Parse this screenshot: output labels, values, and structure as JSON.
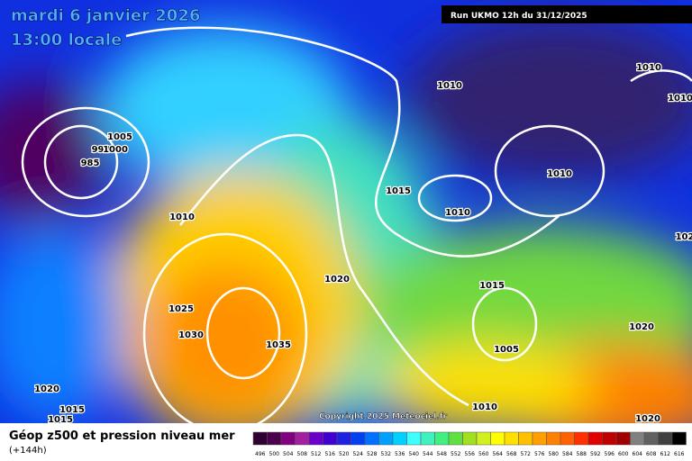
{
  "header": {
    "date": "mardi 6 janvier 2026",
    "time": "13:00 locale",
    "run": "Run UKMO 12h du 31/12/2025",
    "copyright": "Copyright 2025 Meteociel.fr"
  },
  "footer": {
    "title": "Géop z500 et pression niveau mer",
    "lead": "(+144h)"
  },
  "isobars": [
    "1005",
    "990",
    "985",
    "1000",
    "1010",
    "1025",
    "1030",
    "1035",
    "1020",
    "1020",
    "1015",
    "1015",
    "1010",
    "1015",
    "1010",
    "1015",
    "1005",
    "1010",
    "1020",
    "1020",
    "1010",
    "1010",
    "1010",
    "102"
  ],
  "colorbar": {
    "levels": [
      496,
      500,
      504,
      508,
      512,
      516,
      520,
      524,
      528,
      532,
      536,
      540,
      544,
      548,
      552,
      556,
      560,
      564,
      568,
      572,
      576,
      580,
      584,
      588,
      592,
      596,
      600,
      604,
      608,
      612,
      616
    ],
    "colors": [
      "#300030",
      "#4a004a",
      "#800080",
      "#a020a0",
      "#6a00c8",
      "#4000d0",
      "#2020e0",
      "#0040f0",
      "#0070ff",
      "#00a0ff",
      "#00d0ff",
      "#40ffff",
      "#40f0c0",
      "#40f080",
      "#60e040",
      "#a0e020",
      "#d0f020",
      "#ffff00",
      "#ffe000",
      "#ffc000",
      "#ffa000",
      "#ff8000",
      "#ff6000",
      "#ff3000",
      "#e00000",
      "#c00000",
      "#a00000",
      "#808080",
      "#606060",
      "#404040",
      "#000000"
    ]
  }
}
